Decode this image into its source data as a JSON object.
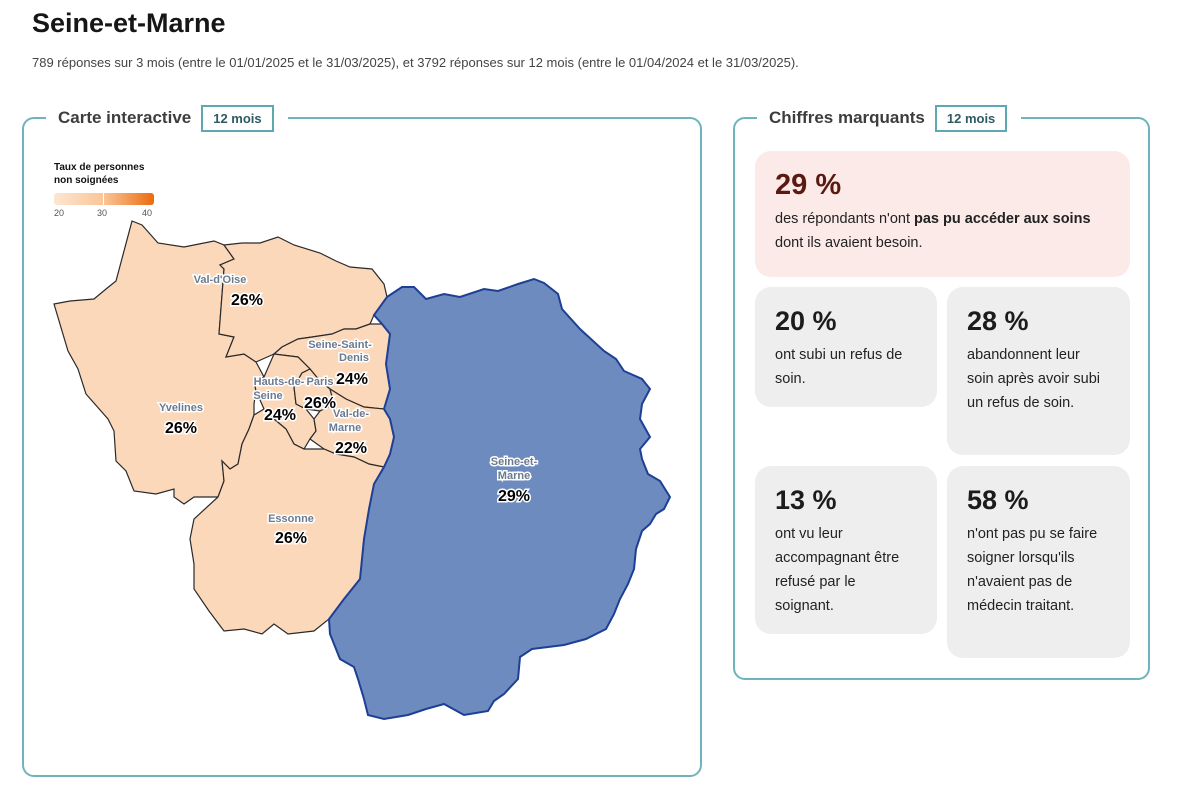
{
  "page": {
    "title": "Seine-et-Marne",
    "subtitle": "789 réponses sur 3 mois (entre le 01/01/2025 et le 31/03/2025), et 3792 réponses sur 12 mois (entre le 01/04/2024 et le 31/03/2025)."
  },
  "map_panel": {
    "title": "Carte interactive",
    "period": "12 mois",
    "legend": {
      "title_line1": "Taux de personnes",
      "title_line2": "non soignées",
      "ticks": [
        "20",
        "30",
        "40"
      ]
    },
    "selected_color": "#6e8bc0",
    "departments": [
      {
        "name": "Val-d'Oise",
        "value": "26%"
      },
      {
        "name_line1": "Seine-Saint-",
        "name_line2": "Denis",
        "value": "24%"
      },
      {
        "name": "Yvelines",
        "value": "26%"
      },
      {
        "name_line1": "Hauts-de-",
        "name_line2": "Seine",
        "value": "24%"
      },
      {
        "name": "Paris",
        "value": "26%"
      },
      {
        "name_line1": "Val-de-",
        "name_line2": "Marne",
        "value": "22%"
      },
      {
        "name_line1": "Seine-et-",
        "name_line2": "Marne",
        "value": "29%"
      },
      {
        "name": "Essonne",
        "value": "26%"
      }
    ]
  },
  "stats_panel": {
    "title": "Chiffres marquants",
    "period": "12 mois",
    "highlight": {
      "value": "29 %",
      "text_before": "des répondants n'ont ",
      "text_bold": "pas pu accéder aux soins",
      "text_after": " dont ils avaient besoin."
    },
    "cards": [
      {
        "value": "20 %",
        "text": "ont subi un refus de soin."
      },
      {
        "value": "28 %",
        "text": "abandonnent leur soin après avoir subi un refus de soin."
      },
      {
        "value": "13 %",
        "text": "ont vu leur accompagnant être refusé par le soignant."
      },
      {
        "value": "58 %",
        "text": "n'ont pas pu se faire soigner lorsqu'ils n'avaient pas de médecin traitant."
      }
    ]
  }
}
